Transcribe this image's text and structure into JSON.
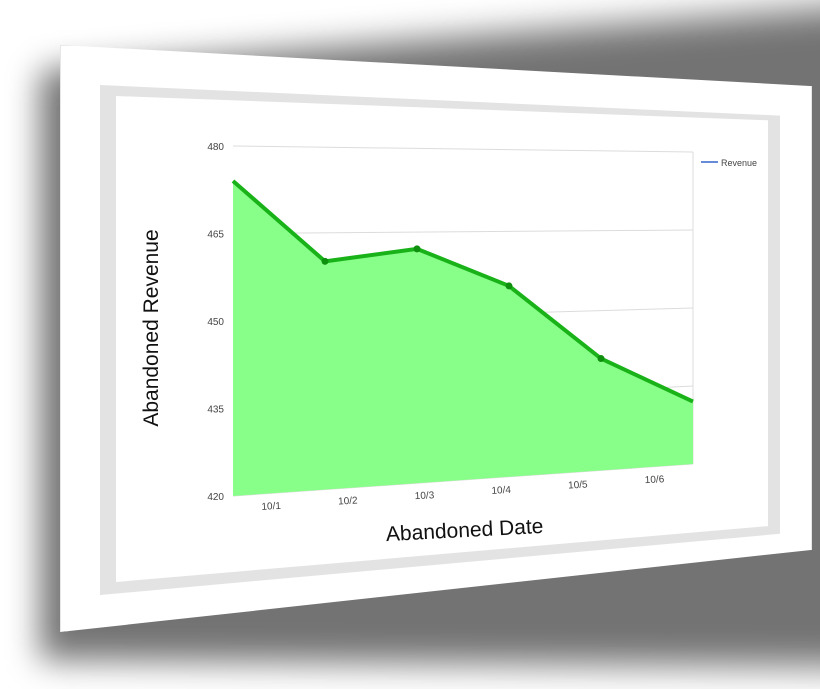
{
  "chart_data": {
    "type": "area",
    "x": [
      "10/1",
      "10/2",
      "10/3",
      "10/4",
      "10/5",
      "10/6"
    ],
    "series": [
      {
        "name": "Revenue",
        "values": [
          474,
          460,
          462,
          455,
          441,
          432
        ]
      }
    ],
    "xlabel": "Abandoned Date",
    "ylabel": "Abandoned Revenue",
    "ylim": [
      420,
      480
    ],
    "yticks": [
      420,
      435,
      450,
      465,
      480
    ],
    "grid": true,
    "legend": "right"
  },
  "colors": {
    "fill": "#88ff88",
    "line": "#19b319",
    "legend_line": "#3366cc"
  }
}
